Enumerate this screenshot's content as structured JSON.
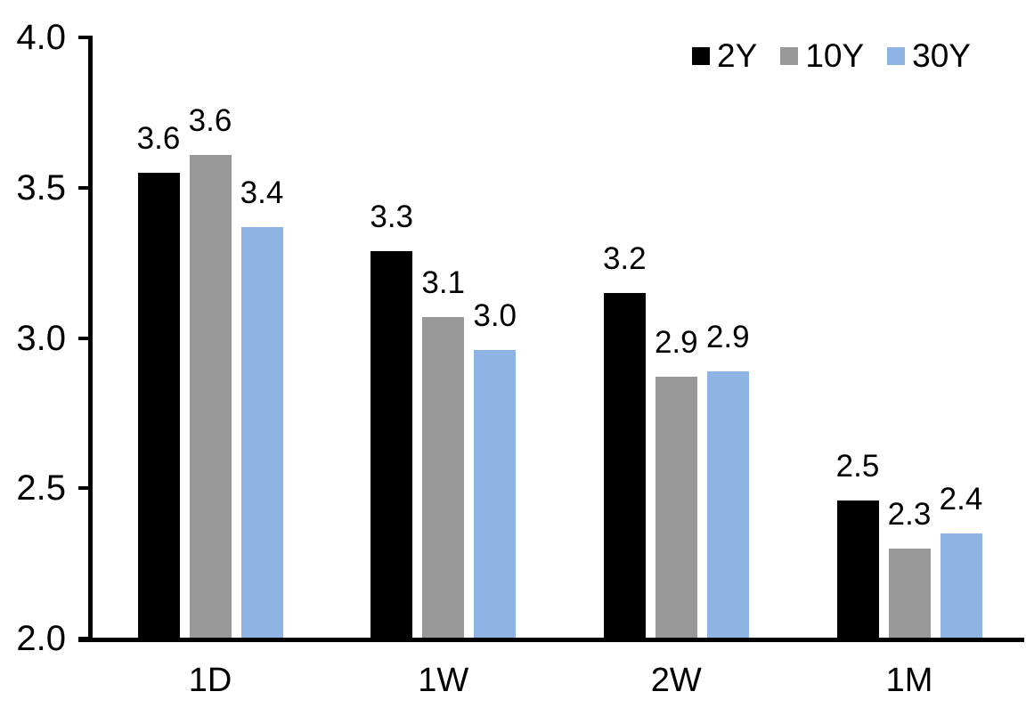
{
  "chart_data": {
    "type": "bar",
    "title": "",
    "categories": [
      "1D",
      "1W",
      "2W",
      "1M"
    ],
    "series": [
      {
        "name": "2Y",
        "color": "#000000",
        "values": [
          3.55,
          3.29,
          3.15,
          2.46
        ],
        "labels": [
          "3.6",
          "3.3",
          "3.2",
          "2.5"
        ]
      },
      {
        "name": "10Y",
        "color": "#989898",
        "values": [
          3.61,
          3.07,
          2.87,
          2.3
        ],
        "labels": [
          "3.6",
          "3.1",
          "2.9",
          "2.3"
        ]
      },
      {
        "name": "30Y",
        "color": "#8DB4E2",
        "values": [
          3.37,
          2.96,
          2.89,
          2.35
        ],
        "labels": [
          "3.4",
          "3.0",
          "2.9",
          "2.4"
        ]
      }
    ],
    "xlabel": "",
    "ylabel": "",
    "ylim": [
      2.0,
      4.0
    ],
    "yticks": [
      {
        "value": 4.0,
        "label": "4.0"
      },
      {
        "value": 3.5,
        "label": "3.5"
      },
      {
        "value": 3.0,
        "label": "3.0"
      },
      {
        "value": 2.5,
        "label": "2.5"
      },
      {
        "value": 2.0,
        "label": "2.0"
      }
    ],
    "grid": false,
    "legend_position": "top-right",
    "bar_labels_shown": true
  },
  "colors": {
    "background": "#FFFFFF",
    "axis": "#000000",
    "text": "#000000",
    "series_2y": "#000000",
    "series_10y": "#989898",
    "series_30y": "#8DB4E2"
  }
}
